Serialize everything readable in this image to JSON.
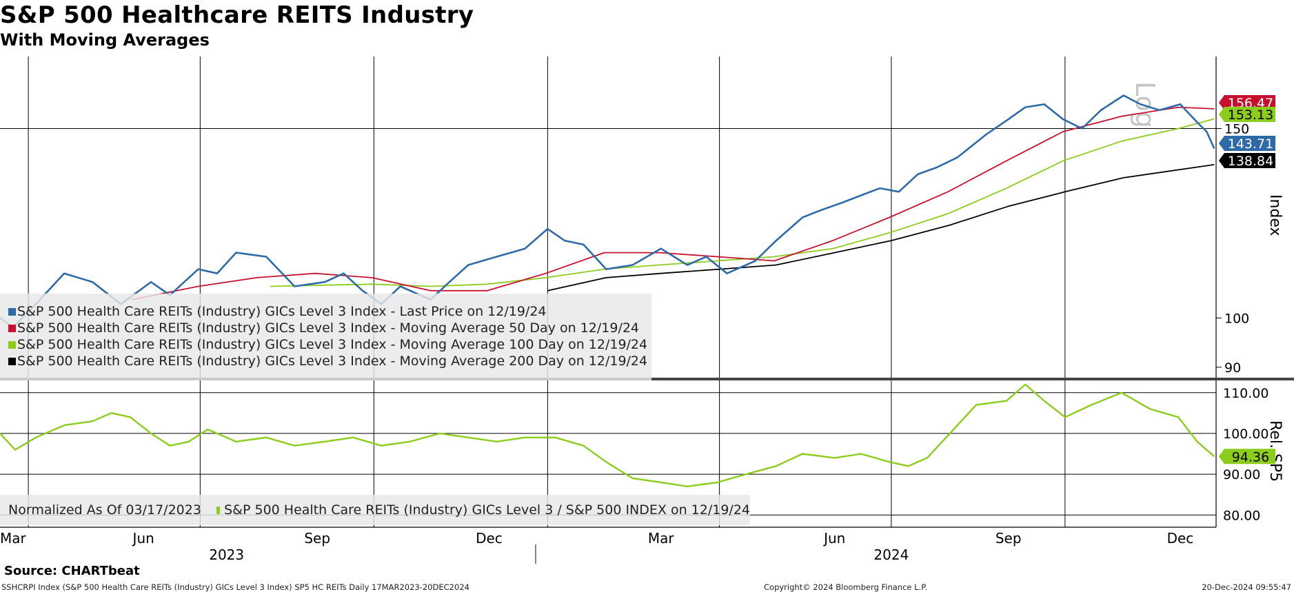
{
  "header": {
    "title": "S&P 500 Healthcare REITS Industry",
    "subtitle": "With Moving Averages"
  },
  "footer": {
    "source": "Source: CHARTbeat",
    "ticker_line": "SSHCRPI Index (S&P 500 Health Care REITs (Industry) GICs Level 3 Index) SP5 HC REITs  Daily 17MAR2023-20DEC2024",
    "copyright": "Copyright© 2024 Bloomberg Finance L.P.",
    "timestamp": "20-Dec-2024 09:55:47"
  },
  "colors": {
    "last_price": "#2e6aa8",
    "ma50": "#c8102e",
    "ma100": "#8ccc1a",
    "ma200": "#000000",
    "relative": "#8ccc1a"
  },
  "chart_data": [
    {
      "type": "line",
      "panel": "upper",
      "ylabel": "Index",
      "yscale": "log",
      "scale_watermark": "Log",
      "ylim": [
        88,
        175
      ],
      "yticks": [
        "90",
        "100",
        "150"
      ],
      "xlim": [
        "2023-03-17",
        "2024-12-20"
      ],
      "x_months": [
        "Mar",
        "Jun",
        "Sep",
        "Dec",
        "Mar",
        "Jun",
        "Sep",
        "Dec"
      ],
      "x_years": [
        "2023",
        "2024"
      ],
      "grid": true,
      "legend": {
        "position": "bottom-left",
        "items": [
          "S&P 500 Health Care REITs (Industry) GICs Level 3 Index - Last Price on 12/19/24",
          "S&P 500 Health Care REITs (Industry) GICs Level 3 Index - Moving Average 50 Day on 12/19/24",
          "S&P 500 Health Care REITs (Industry) GICs Level 3 Index - Moving Average 100 Day on 12/19/24",
          "S&P 500 Health Care REITs (Industry) GICs Level 3 Index - Moving Average 200 Day on 12/19/24"
        ]
      },
      "series": [
        {
          "name": "S&P 500 Health Care REITs (Industry) GICs Level 3 Index - Last Price on 12/19/24",
          "color_key": "last_price",
          "last_label": "143.71",
          "points": [
            [
              "2023-03-17",
              100
            ],
            [
              "2023-03-24",
              98
            ],
            [
              "2023-04-05",
              103
            ],
            [
              "2023-04-20",
              110
            ],
            [
              "2023-05-05",
              108
            ],
            [
              "2023-05-20",
              103
            ],
            [
              "2023-06-05",
              108
            ],
            [
              "2023-06-15",
              105
            ],
            [
              "2023-06-30",
              111
            ],
            [
              "2023-07-10",
              110
            ],
            [
              "2023-07-20",
              115
            ],
            [
              "2023-08-05",
              114
            ],
            [
              "2023-08-20",
              107
            ],
            [
              "2023-09-05",
              108
            ],
            [
              "2023-09-15",
              110
            ],
            [
              "2023-09-25",
              106
            ],
            [
              "2023-10-05",
              103
            ],
            [
              "2023-10-15",
              107
            ],
            [
              "2023-10-31",
              104
            ],
            [
              "2023-11-10",
              108
            ],
            [
              "2023-11-20",
              112
            ],
            [
              "2023-12-05",
              114
            ],
            [
              "2023-12-20",
              116
            ],
            [
              "2024-01-01",
              121
            ],
            [
              "2024-01-10",
              118
            ],
            [
              "2024-01-20",
              117
            ],
            [
              "2024-02-01",
              111
            ],
            [
              "2024-02-15",
              112
            ],
            [
              "2024-03-01",
              116
            ],
            [
              "2024-03-15",
              112
            ],
            [
              "2024-03-25",
              114
            ],
            [
              "2024-04-05",
              110
            ],
            [
              "2024-04-20",
              113
            ],
            [
              "2024-05-01",
              118
            ],
            [
              "2024-05-15",
              124
            ],
            [
              "2024-05-25",
              126
            ],
            [
              "2024-06-05",
              128
            ],
            [
              "2024-06-15",
              130
            ],
            [
              "2024-06-25",
              132
            ],
            [
              "2024-07-05",
              131
            ],
            [
              "2024-07-15",
              136
            ],
            [
              "2024-07-25",
              138
            ],
            [
              "2024-08-05",
              141
            ],
            [
              "2024-08-20",
              148
            ],
            [
              "2024-09-01",
              153
            ],
            [
              "2024-09-10",
              157
            ],
            [
              "2024-09-20",
              158
            ],
            [
              "2024-09-30",
              153
            ],
            [
              "2024-10-10",
              150
            ],
            [
              "2024-10-20",
              156
            ],
            [
              "2024-11-01",
              161
            ],
            [
              "2024-11-10",
              158
            ],
            [
              "2024-11-20",
              156
            ],
            [
              "2024-12-01",
              158
            ],
            [
              "2024-12-10",
              152
            ],
            [
              "2024-12-15",
              149
            ],
            [
              "2024-12-19",
              143.71
            ]
          ]
        },
        {
          "name": "S&P 500 Health Care REITs (Industry) GICs Level 3 Index - Moving Average 50 Day on 12/19/24",
          "color_key": "ma50",
          "last_label": "156.47",
          "points": [
            [
              "2023-05-26",
              104
            ],
            [
              "2023-06-30",
              107
            ],
            [
              "2023-07-31",
              109
            ],
            [
              "2023-08-31",
              110
            ],
            [
              "2023-09-30",
              109
            ],
            [
              "2023-10-31",
              106
            ],
            [
              "2023-11-30",
              106
            ],
            [
              "2023-12-31",
              110
            ],
            [
              "2024-01-31",
              115
            ],
            [
              "2024-02-29",
              115
            ],
            [
              "2024-03-31",
              114
            ],
            [
              "2024-04-30",
              113
            ],
            [
              "2024-05-31",
              118
            ],
            [
              "2024-06-30",
              124
            ],
            [
              "2024-07-31",
              131
            ],
            [
              "2024-08-31",
              140
            ],
            [
              "2024-09-30",
              149
            ],
            [
              "2024-10-31",
              154
            ],
            [
              "2024-11-30",
              157
            ],
            [
              "2024-12-19",
              156.47
            ]
          ]
        },
        {
          "name": "S&P 500 Health Care REITs (Industry) GICs Level 3 Index - Moving Average 100 Day on 12/19/24",
          "color_key": "ma100",
          "last_label": "153.13",
          "points": [
            [
              "2023-08-07",
              107
            ],
            [
              "2023-09-30",
              107.5
            ],
            [
              "2023-10-31",
              107
            ],
            [
              "2023-11-30",
              107.5
            ],
            [
              "2023-12-31",
              109
            ],
            [
              "2024-01-31",
              111
            ],
            [
              "2024-02-29",
              112
            ],
            [
              "2024-03-31",
              113
            ],
            [
              "2024-04-30",
              114
            ],
            [
              "2024-05-31",
              116
            ],
            [
              "2024-06-30",
              120
            ],
            [
              "2024-07-31",
              125
            ],
            [
              "2024-08-31",
              132
            ],
            [
              "2024-09-30",
              140
            ],
            [
              "2024-10-31",
              146
            ],
            [
              "2024-11-30",
              150
            ],
            [
              "2024-12-19",
              153.13
            ]
          ]
        },
        {
          "name": "S&P 500 Health Care REITs (Industry) GICs Level 3 Index - Moving Average 200 Day on 12/19/24",
          "color_key": "ma200",
          "last_label": "138.84",
          "points": [
            [
              "2024-01-01",
              106
            ],
            [
              "2024-02-01",
              109
            ],
            [
              "2024-03-01",
              110
            ],
            [
              "2024-04-01",
              111
            ],
            [
              "2024-05-01",
              112
            ],
            [
              "2024-06-01",
              115
            ],
            [
              "2024-07-01",
              118
            ],
            [
              "2024-08-01",
              122
            ],
            [
              "2024-09-01",
              127
            ],
            [
              "2024-10-01",
              131
            ],
            [
              "2024-11-01",
              135
            ],
            [
              "2024-12-19",
              138.84
            ]
          ]
        }
      ]
    },
    {
      "type": "line",
      "panel": "lower",
      "ylabel": "Rel. SP5",
      "ylim": [
        77,
        113
      ],
      "yticks": [
        "80.00",
        "90.00",
        "100.00",
        "110.00"
      ],
      "grid": true,
      "legend": {
        "position": "bottom-left",
        "note": "Normalized As Of 03/17/2023",
        "items": [
          "S&P 500 Health Care REITs (Industry) GICs Level 3 / S&P 500 INDEX on 12/19/24"
        ]
      },
      "series": [
        {
          "name": "S&P 500 Health Care REITs (Industry) GICs Level 3 / S&P 500 INDEX on 12/19/24",
          "color_key": "relative",
          "last_label": "94.36",
          "points": [
            [
              "2023-03-17",
              100
            ],
            [
              "2023-03-25",
              96
            ],
            [
              "2023-04-05",
              99
            ],
            [
              "2023-04-20",
              102
            ],
            [
              "2023-05-05",
              103
            ],
            [
              "2023-05-15",
              105
            ],
            [
              "2023-05-25",
              104
            ],
            [
              "2023-06-05",
              100
            ],
            [
              "2023-06-15",
              97
            ],
            [
              "2023-06-25",
              98
            ],
            [
              "2023-07-05",
              101
            ],
            [
              "2023-07-20",
              98
            ],
            [
              "2023-08-05",
              99
            ],
            [
              "2023-08-20",
              97
            ],
            [
              "2023-09-05",
              98
            ],
            [
              "2023-09-20",
              99
            ],
            [
              "2023-10-05",
              97
            ],
            [
              "2023-10-20",
              98
            ],
            [
              "2023-11-05",
              100
            ],
            [
              "2023-11-20",
              99
            ],
            [
              "2023-12-05",
              98
            ],
            [
              "2023-12-20",
              99
            ],
            [
              "2024-01-05",
              99
            ],
            [
              "2024-01-20",
              97
            ],
            [
              "2024-02-01",
              93
            ],
            [
              "2024-02-15",
              89
            ],
            [
              "2024-03-01",
              88
            ],
            [
              "2024-03-15",
              87
            ],
            [
              "2024-03-31",
              88
            ],
            [
              "2024-04-15",
              90
            ],
            [
              "2024-05-01",
              92
            ],
            [
              "2024-05-15",
              95
            ],
            [
              "2024-06-01",
              94
            ],
            [
              "2024-06-15",
              95
            ],
            [
              "2024-06-30",
              93
            ],
            [
              "2024-07-10",
              92
            ],
            [
              "2024-07-20",
              94
            ],
            [
              "2024-08-01",
              100
            ],
            [
              "2024-08-15",
              107
            ],
            [
              "2024-08-31",
              108
            ],
            [
              "2024-09-10",
              112
            ],
            [
              "2024-09-20",
              108
            ],
            [
              "2024-10-01",
              104
            ],
            [
              "2024-10-15",
              107
            ],
            [
              "2024-10-31",
              110
            ],
            [
              "2024-11-15",
              106
            ],
            [
              "2024-11-30",
              104
            ],
            [
              "2024-12-10",
              98
            ],
            [
              "2024-12-19",
              94.36
            ]
          ]
        }
      ]
    }
  ]
}
